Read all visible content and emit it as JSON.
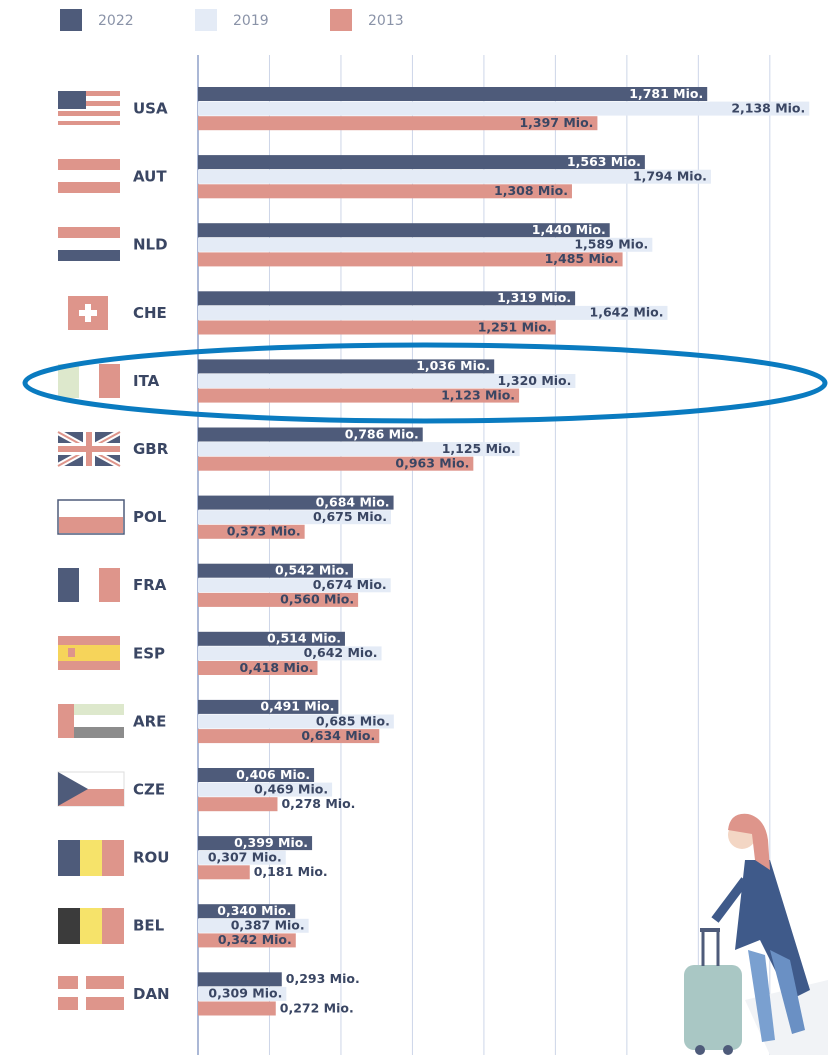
{
  "chart_data": {
    "type": "bar",
    "orientation": "horizontal",
    "categories": [
      "USA",
      "AUT",
      "NLD",
      "CHE",
      "ITA",
      "GBR",
      "POL",
      "FRA",
      "ESP",
      "ARE",
      "CZE",
      "ROU",
      "BEL",
      "DAN"
    ],
    "series": [
      {
        "name": "2022",
        "color": "#4e5b7a",
        "values": [
          1.781,
          1.563,
          1.44,
          1.319,
          1.036,
          0.786,
          0.684,
          0.542,
          0.514,
          0.491,
          0.406,
          0.399,
          0.34,
          0.293
        ],
        "value_labels": [
          "1,781 Mio.",
          "1,563 Mio.",
          "1,440 Mio.",
          "1,319 Mio.",
          "1,036 Mio.",
          "0,786 Mio.",
          "0,684 Mio.",
          "0,542 Mio.",
          "0,514 Mio.",
          "0,491 Mio.",
          "0,406 Mio.",
          "0,399 Mio.",
          "0,340 Mio.",
          "0,293 Mio."
        ]
      },
      {
        "name": "2019",
        "color": "#e4ebf6",
        "values": [
          2.138,
          1.794,
          1.589,
          1.642,
          1.32,
          1.125,
          0.675,
          0.674,
          0.642,
          0.685,
          0.469,
          0.307,
          0.387,
          0.309
        ],
        "value_labels": [
          "2,138 Mio.",
          "1,794 Mio.",
          "1,589 Mio.",
          "1,642 Mio.",
          "1,320 Mio.",
          "1,125 Mio.",
          "0,675 Mio.",
          "0,674 Mio.",
          "0,642 Mio.",
          "0,685 Mio.",
          "0,469 Mio.",
          "0,307 Mio.",
          "0,387 Mio.",
          "0,309 Mio."
        ]
      },
      {
        "name": "2013",
        "color": "#de958b",
        "values": [
          1.397,
          1.308,
          1.485,
          1.251,
          1.123,
          0.963,
          0.373,
          0.56,
          0.418,
          0.634,
          0.278,
          0.181,
          0.342,
          0.272
        ],
        "value_labels": [
          "1,397 Mio.",
          "1,308 Mio.",
          "1,485 Mio.",
          "1,251 Mio.",
          "1,123 Mio.",
          "0,963 Mio.",
          "0,373 Mio.",
          "0,560 Mio.",
          "0,418 Mio.",
          "0,634 Mio.",
          "0,278 Mio.",
          "0,181 Mio.",
          "0,342 Mio.",
          "0,272 Mio."
        ]
      }
    ],
    "xlim": [
      0,
      2.2
    ],
    "xticks": [
      0,
      0.25,
      0.5,
      0.75,
      1,
      1.25,
      1.5,
      1.75,
      2
    ],
    "grid": true
  }
}
